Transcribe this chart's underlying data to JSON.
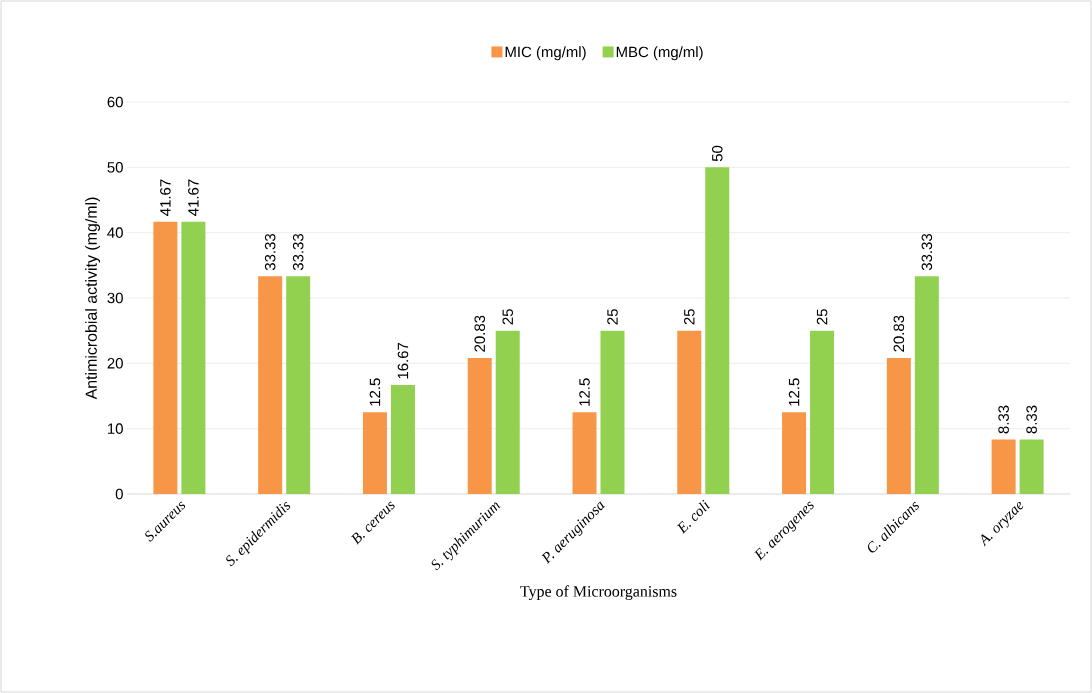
{
  "chart_data": {
    "type": "bar",
    "xlabel": "Type of Microorganisms",
    "ylabel": "Antimicrobial activity (mg/ml)",
    "categories": [
      "S.aureus",
      "S. epidermidis",
      "B. cereus",
      "S. typhimurium",
      "P. aeruginosa",
      "E. coli",
      "E. aerogenes",
      "C. albicans",
      "A. oryzae"
    ],
    "series": [
      {
        "name": "MIC (mg/ml)",
        "color": "#f79646",
        "values": [
          41.67,
          33.33,
          12.5,
          20.83,
          12.5,
          25,
          12.5,
          20.83,
          8.33
        ]
      },
      {
        "name": "MBC (mg/ml)",
        "color": "#92d050",
        "values": [
          41.67,
          33.33,
          16.67,
          25,
          25,
          50,
          25,
          33.33,
          8.33
        ]
      }
    ],
    "ylim": [
      0,
      60
    ],
    "yticks": [
      0,
      10,
      20,
      30,
      40,
      50,
      60
    ],
    "grid": "y",
    "legend": "top",
    "data_labels": true
  }
}
